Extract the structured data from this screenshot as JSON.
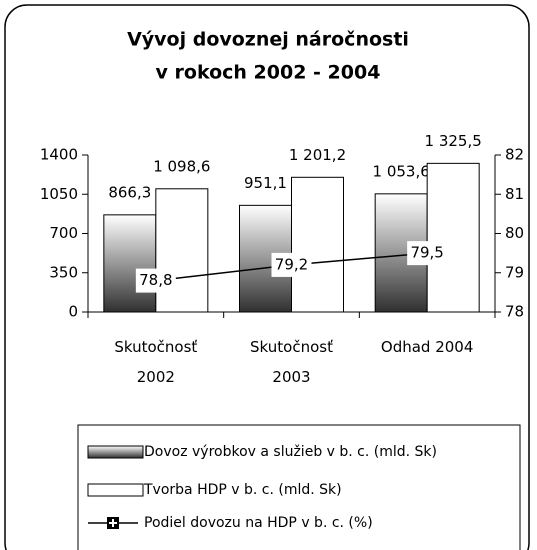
{
  "chart_data": {
    "type": "bar-line",
    "title": "Vývoj dovoznej náročnosti",
    "subtitle": "v rokoch 2002 - 2004",
    "categories": [
      "Skutočnosť 2002",
      "Skutočnosť 2003",
      "Odhad 2004"
    ],
    "series": [
      {
        "name": "Dovoz výrobkov a služieb v b. c. (mld. Sk)",
        "type": "bar",
        "color": "#808080",
        "values": [
          866.3,
          951.1,
          1053.6
        ],
        "value_labels": [
          "866,3",
          "951,1",
          "1 053,6"
        ]
      },
      {
        "name": "Tvorba HDP v b. c. (mld. Sk)",
        "type": "bar",
        "color": "#ffffff",
        "values": [
          1098.6,
          1201.2,
          1325.5
        ],
        "value_labels": [
          "1 098,6",
          "1 201,2",
          "1 325,5"
        ]
      },
      {
        "name": "Podiel dovozu na HDP v b. c. (%)",
        "type": "line",
        "axis": "y2",
        "color": "#000000",
        "values": [
          78.8,
          79.2,
          79.5
        ],
        "value_labels": [
          "78,8",
          "79,2",
          "79,5"
        ]
      }
    ],
    "ylim": [
      0,
      1400
    ],
    "yticks": [
      0,
      350,
      700,
      1050,
      1400
    ],
    "y2lim": [
      78,
      82
    ],
    "y2ticks": [
      78,
      79,
      80,
      81,
      82
    ],
    "legend": "bottom"
  }
}
